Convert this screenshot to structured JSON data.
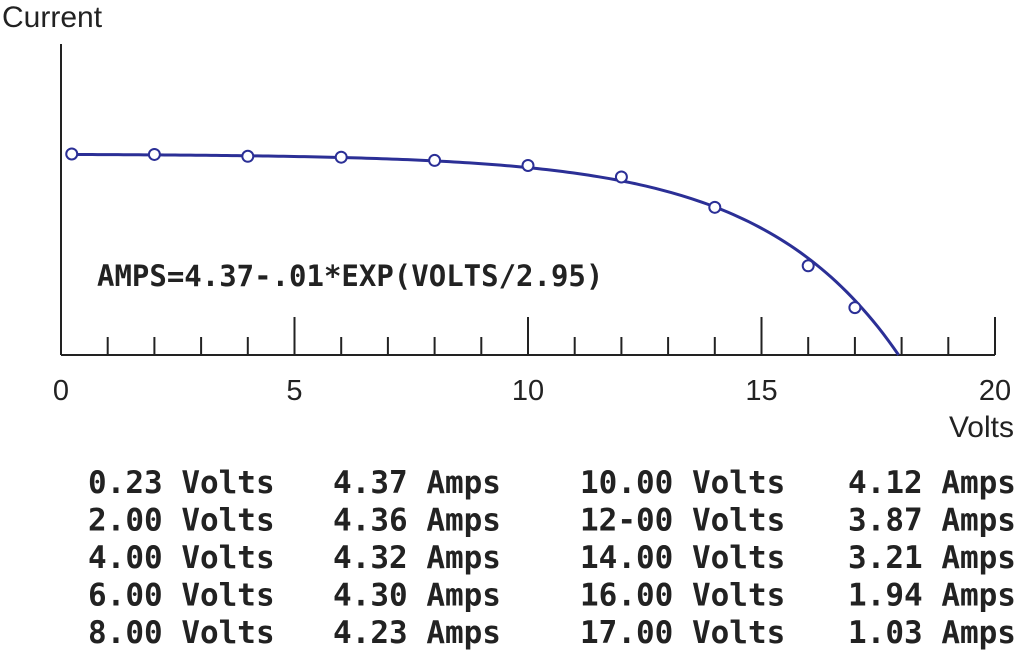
{
  "chart_data": {
    "type": "scatter",
    "ylabel": "Current",
    "xlabel": "Volts",
    "xlim": [
      0,
      20
    ],
    "x_ticks": [
      0,
      5,
      10,
      15,
      20
    ],
    "x_minor_step": 1,
    "y_ticks": [],
    "grid": false,
    "annotation": "AMPS=4.37-.01*EXP(VOLTS/2.95)",
    "curve": {
      "equation": "AMPS=4.37-.01*EXP(VOLTS/2.95)",
      "a": 4.37,
      "b": 0.01,
      "c": 2.95,
      "color": "#2b2f96"
    },
    "points": {
      "x": [
        0.23,
        2.0,
        4.0,
        6.0,
        8.0,
        10.0,
        12.0,
        14.0,
        16.0,
        17.0
      ],
      "y": [
        4.37,
        4.36,
        4.32,
        4.3,
        4.23,
        4.12,
        3.87,
        3.21,
        1.94,
        1.03
      ],
      "marker": "open-circle",
      "color": "#2b2f96"
    },
    "table": {
      "rows": [
        [
          "0.23 Volts",
          "4.37 Amps",
          "10.00 Volts",
          "4.12 Amps"
        ],
        [
          "2.00 Volts",
          "4.36 Amps",
          "12-00 Volts",
          "3.87 Amps"
        ],
        [
          "4.00 Volts",
          "4.32 Amps",
          "14.00 Volts",
          "3.21 Amps"
        ],
        [
          "6.00 Volts",
          "4.30 Amps",
          "16.00 Volts",
          "1.94 Amps"
        ],
        [
          "8.00 Volts",
          "4.23 Amps",
          "17.00 Volts",
          "1.03 Amps"
        ]
      ]
    }
  }
}
